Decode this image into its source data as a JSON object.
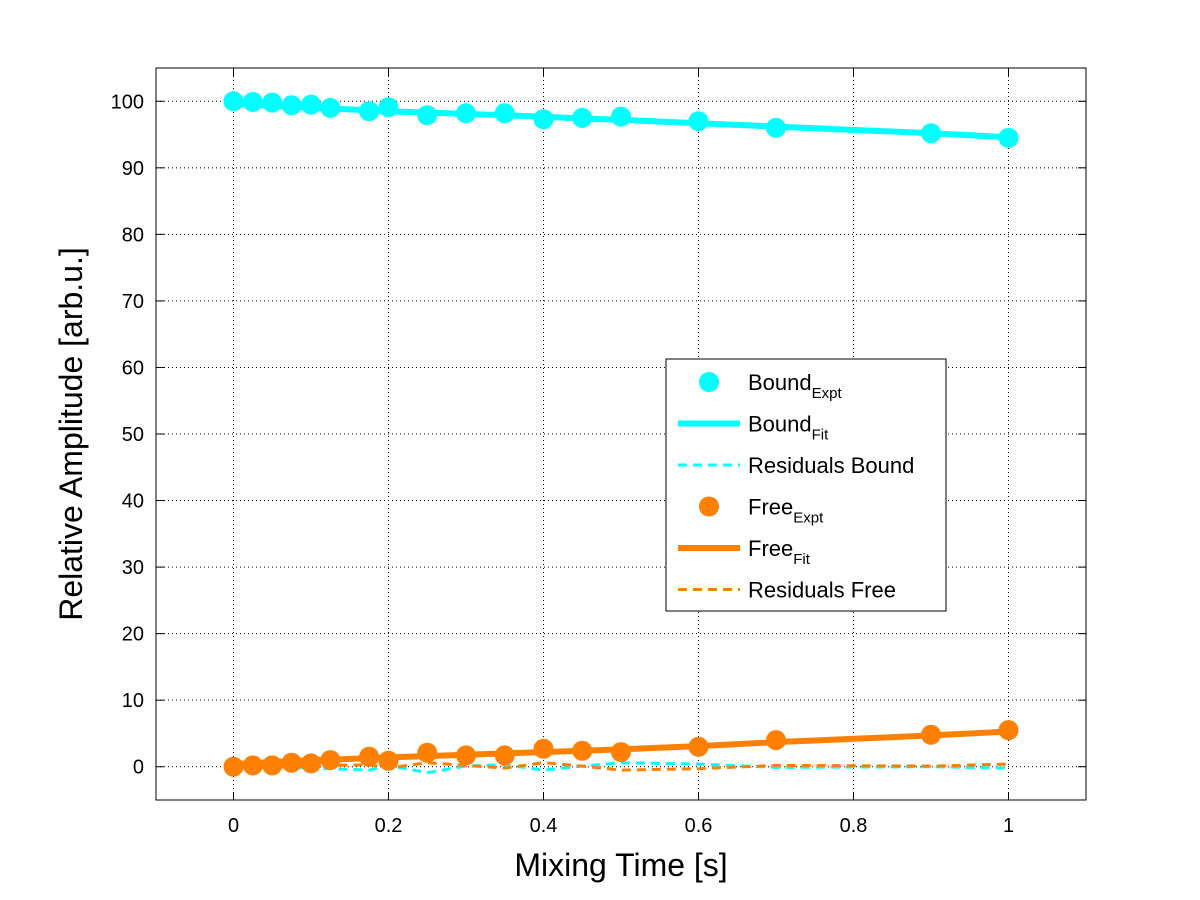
{
  "chart_data": {
    "type": "line",
    "title": "",
    "xlabel": "Mixing Time [s]",
    "ylabel": "Relative Amplitude [arb.u.]",
    "xlim": [
      -0.1,
      1.1
    ],
    "ylim": [
      -5,
      105
    ],
    "xticks": [
      0,
      0.2,
      0.4,
      0.6,
      0.8,
      1
    ],
    "xtick_labels": [
      "0",
      "0.2",
      "0.4",
      "0.6",
      "0.8",
      "1"
    ],
    "yticks": [
      0,
      10,
      20,
      30,
      40,
      50,
      60,
      70,
      80,
      90,
      100
    ],
    "ytick_labels": [
      "0",
      "10",
      "20",
      "30",
      "40",
      "50",
      "60",
      "70",
      "80",
      "90",
      "100"
    ],
    "grid": true,
    "legend_placement": "center-right",
    "x": [
      0,
      0.025,
      0.05,
      0.075,
      0.1,
      0.125,
      0.175,
      0.2,
      0.25,
      0.3,
      0.35,
      0.4,
      0.45,
      0.5,
      0.6,
      0.7,
      0.9,
      1
    ],
    "series": [
      {
        "name": "Bound",
        "name_sub": "Expt",
        "style": "markers",
        "color": "#00FFFF",
        "values": [
          100,
          99.9,
          99.8,
          99.4,
          99.5,
          99.0,
          98.5,
          99.1,
          97.9,
          98.2,
          98.2,
          97.3,
          97.5,
          97.7,
          97.0,
          96.0,
          95.2,
          94.5
        ]
      },
      {
        "name": "Bound",
        "name_sub": "Fit",
        "style": "solid",
        "color": "#00FFFF",
        "values": [
          99.6,
          99.45,
          99.3,
          99.15,
          99.0,
          98.9,
          98.65,
          98.5,
          98.3,
          98.1,
          97.9,
          97.7,
          97.4,
          97.2,
          96.7,
          96.2,
          95.2,
          94.6
        ]
      },
      {
        "name": "Residuals Bound",
        "style": "dashed",
        "color": "#00FFFF",
        "values": [
          0.2,
          0.1,
          0.0,
          -0.1,
          -0.2,
          -0.3,
          -0.5,
          0.2,
          -0.9,
          0.1,
          0.3,
          -0.5,
          0.1,
          0.6,
          0.4,
          -0.1,
          0.0,
          -0.2
        ]
      },
      {
        "name": "Free",
        "name_sub": "Expt",
        "style": "markers",
        "color": "#FF8000",
        "values": [
          0,
          0.2,
          0.2,
          0.6,
          0.5,
          1.0,
          1.5,
          0.9,
          2.1,
          1.7,
          1.7,
          2.7,
          2.4,
          2.2,
          3.0,
          4.0,
          4.8,
          5.5
        ]
      },
      {
        "name": "Free",
        "name_sub": "Fit",
        "style": "solid",
        "color": "#FF8000",
        "values": [
          0.4,
          0.55,
          0.7,
          0.85,
          0.95,
          1.05,
          1.3,
          1.4,
          1.6,
          1.8,
          2.0,
          2.2,
          2.4,
          2.6,
          3.1,
          3.7,
          4.7,
          5.3
        ]
      },
      {
        "name": "Residuals Free",
        "style": "dashed",
        "color": "#FF8000",
        "values": [
          -0.2,
          -0.1,
          -0.1,
          0.0,
          0.1,
          0.2,
          0.3,
          -0.2,
          0.6,
          0.2,
          -0.2,
          0.6,
          0.1,
          -0.5,
          -0.3,
          0.2,
          0.1,
          0.4
        ]
      }
    ]
  }
}
